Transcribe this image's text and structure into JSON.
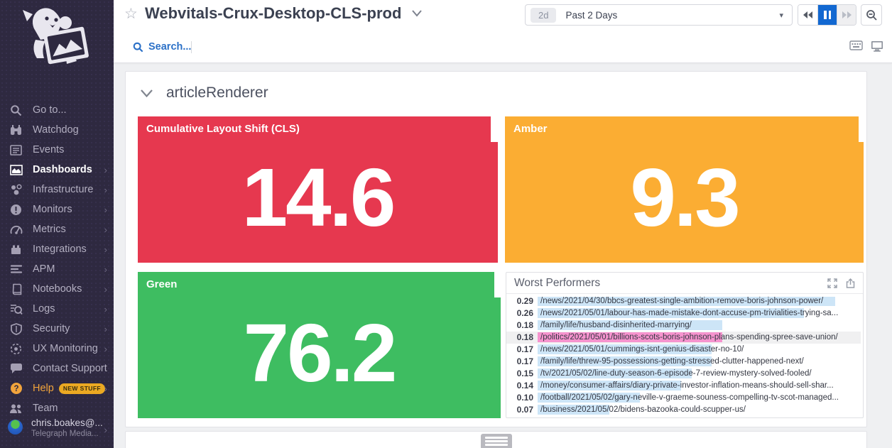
{
  "sidebar": {
    "items": [
      {
        "label": "Go to...",
        "icon": "search",
        "chevron": false
      },
      {
        "label": "Watchdog",
        "icon": "binoculars",
        "chevron": false
      },
      {
        "label": "Events",
        "icon": "events",
        "chevron": false
      },
      {
        "label": "Dashboards",
        "icon": "dashboards",
        "chevron": true,
        "active": true
      },
      {
        "label": "Infrastructure",
        "icon": "infrastructure",
        "chevron": true
      },
      {
        "label": "Monitors",
        "icon": "monitors",
        "chevron": true
      },
      {
        "label": "Metrics",
        "icon": "metrics",
        "chevron": true
      },
      {
        "label": "Integrations",
        "icon": "integrations",
        "chevron": true
      },
      {
        "label": "APM",
        "icon": "apm",
        "chevron": true
      },
      {
        "label": "Notebooks",
        "icon": "notebooks",
        "chevron": true
      },
      {
        "label": "Logs",
        "icon": "logs",
        "chevron": true
      },
      {
        "label": "Security",
        "icon": "security",
        "chevron": true
      },
      {
        "label": "UX Monitoring",
        "icon": "ux",
        "chevron": true
      },
      {
        "label": "Contact Support",
        "icon": "chat",
        "chevron": false
      },
      {
        "label": "Help",
        "icon": "help",
        "chevron": true,
        "help": true,
        "badge": "NEW STUFF"
      },
      {
        "label": "Team",
        "icon": "team",
        "chevron": false
      }
    ],
    "user": {
      "name": "chris.boakes@...",
      "org": "Telegraph Media..."
    }
  },
  "topbar": {
    "title": "Webvitals-Crux-Desktop-CLS-prod",
    "star_icon": "☆",
    "search_label": "Search...",
    "time_range": {
      "badge": "2d",
      "label": "Past 2 Days",
      "caret": "▾"
    }
  },
  "section": {
    "title": "articleRenderer"
  },
  "widgets": [
    {
      "title": "Cumulative Layout Shift (CLS)",
      "value": "14.6",
      "color": "#e6384f"
    },
    {
      "title": "Amber",
      "value": "9.3",
      "color": "#fbad33"
    },
    {
      "title": "Green",
      "value": "76.2",
      "color": "#3ebd61"
    }
  ],
  "worst_performers": {
    "title": "Worst Performers",
    "bar_color": "#cde5f7",
    "highlight_bar_color": "#f693ce",
    "rows": [
      {
        "value": "0.29",
        "url": "/news/2021/04/30/bbcs-greatest-single-ambition-remove-boris-johnson-power/"
      },
      {
        "value": "0.26",
        "url": "/news/2021/05/01/labour-has-made-mistake-dont-accuse-pm-trivialities-trying-sa..."
      },
      {
        "value": "0.18",
        "url": "/family/life/husband-disinherited-marrying/"
      },
      {
        "value": "0.18",
        "url": "/politics/2021/05/01/billions-scots-boris-johnson-plans-spending-spree-save-union/",
        "highlight": true
      },
      {
        "value": "0.17",
        "url": "/news/2021/05/01/cummings-isnt-genius-disaster-no-10/"
      },
      {
        "value": "0.17",
        "url": "/family/life/threw-95-possessions-getting-stressed-clutter-happened-next/"
      },
      {
        "value": "0.15",
        "url": "/tv/2021/05/02/line-duty-season-6-episode-7-review-mystery-solved-fooled/"
      },
      {
        "value": "0.14",
        "url": "/money/consumer-affairs/diary-private-investor-inflation-means-should-sell-shar..."
      },
      {
        "value": "0.10",
        "url": "/football/2021/05/02/gary-neville-v-graeme-souness-compelling-tv-scot-managed..."
      },
      {
        "value": "0.07",
        "url": "/business/2021/05/02/bidens-bazooka-could-scupper-us/"
      }
    ]
  },
  "colors": {
    "sidebar_bg": "#2e2940",
    "accent_blue": "#1268d1",
    "link_blue": "#2c71c7",
    "help_orange": "#f2a43c"
  }
}
